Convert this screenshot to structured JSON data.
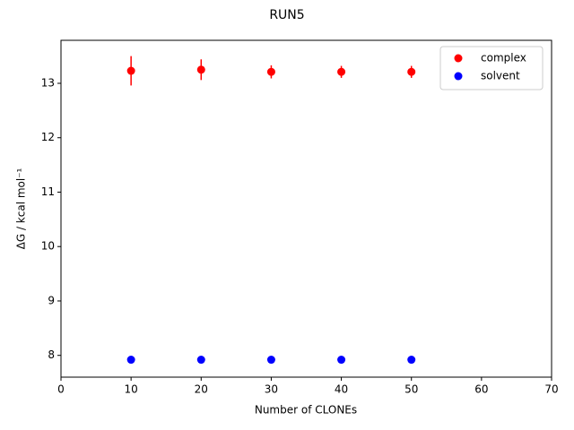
{
  "chart_data": {
    "type": "scatter",
    "title": "RUN5",
    "x_label": "Number of CLONEs",
    "y_label": "ΔG / kcal mol⁻¹",
    "x": [
      10,
      20,
      30,
      40,
      50
    ],
    "series": [
      {
        "name": "complex",
        "color": "#ff0000",
        "values": [
          13.23,
          13.25,
          13.21,
          13.21,
          13.21
        ],
        "yerr": [
          0.27,
          0.19,
          0.12,
          0.11,
          0.11
        ]
      },
      {
        "name": "solvent",
        "color": "#0000ff",
        "values": [
          7.92,
          7.92,
          7.92,
          7.92,
          7.92
        ],
        "yerr": [
          0.01,
          0.01,
          0.01,
          0.01,
          0.01
        ]
      }
    ],
    "xlim": [
      0,
      70
    ],
    "xticks": [
      0,
      10,
      20,
      30,
      40,
      50,
      60,
      70
    ],
    "ylim": [
      7.6,
      13.79
    ],
    "yticks": [
      8,
      9,
      10,
      11,
      12,
      13
    ],
    "grid": false,
    "legend": "upper-right"
  }
}
